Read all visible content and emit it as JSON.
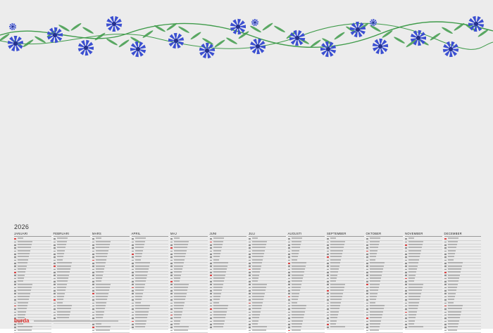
{
  "calendar": {
    "year": "2026",
    "brand": "burda",
    "months": [
      "JANUARI",
      "FEBRUARI",
      "MARS",
      "APRIL",
      "MAJ",
      "JUNI",
      "JULI",
      "AUGUSTI",
      "SEPTEMBER",
      "OKTOBER",
      "NOVEMBER",
      "DECEMBER"
    ],
    "days_in_month": [
      31,
      28,
      31,
      30,
      31,
      30,
      31,
      31,
      30,
      31,
      30,
      31
    ]
  },
  "colors": {
    "background": "#ececec",
    "flower": "#3b4fd1",
    "flower_dark": "#24318f",
    "leaf": "#3f9b4a",
    "brand": "#e0312e",
    "holiday": "#d33333"
  },
  "decoration": "cornflower-garland-border"
}
